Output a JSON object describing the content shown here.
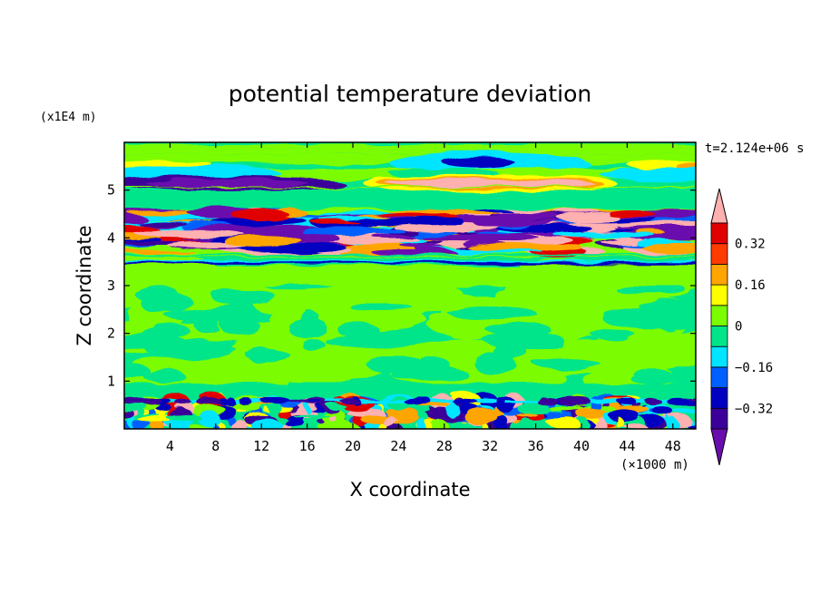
{
  "chart_data": {
    "type": "heatmap",
    "title": "potential temperature deviation",
    "time_label": "t=2.124e+06 s",
    "xlabel": "X coordinate",
    "ylabel": "Z coordinate",
    "x_unit": "(×1000 m)",
    "y_unit": "(x1E4 m)",
    "xlim": [
      0,
      50
    ],
    "ylim": [
      0,
      6
    ],
    "x_ticks": [
      4,
      8,
      12,
      16,
      20,
      24,
      28,
      32,
      36,
      40,
      44,
      48
    ],
    "y_ticks": [
      1,
      2,
      3,
      4,
      5
    ],
    "x_tick_labels": [
      "4",
      "8",
      "12",
      "16",
      "20",
      "24",
      "28",
      "32",
      "36",
      "40",
      "44",
      "48"
    ],
    "y_tick_labels": [
      "1",
      "2",
      "3",
      "4",
      "5"
    ],
    "colorbar": {
      "levels": [
        -0.4,
        -0.32,
        -0.24,
        -0.16,
        -0.08,
        0,
        0.08,
        0.16,
        0.24,
        0.32,
        0.4
      ],
      "tick_values": [
        0.32,
        0.16,
        0,
        -0.16,
        -0.32
      ],
      "tick_labels": [
        "0.32",
        "0.16",
        "0",
        "−0.16",
        "−0.32"
      ],
      "colors": [
        "#6a0daf",
        "#3b0099",
        "#0000c0",
        "#0060ff",
        "#00e5ff",
        "#00e58a",
        "#7cfc00",
        "#ffff00",
        "#ffa500",
        "#ff3c00",
        "#e00000",
        "#ffb0b0"
      ],
      "extend": "both"
    },
    "bands": [
      {
        "z": [
          5.55,
          5.75
        ],
        "value": -0.05
      },
      {
        "z": [
          5.45,
          5.55
        ],
        "value": 0.2
      },
      {
        "z": [
          5.25,
          5.45
        ],
        "value": -0.18
      },
      {
        "z": [
          5.05,
          5.22
        ],
        "value": 0.45
      },
      {
        "z": [
          4.0,
          4.55
        ],
        "value": "mixed"
      },
      {
        "z": [
          3.45,
          3.55
        ],
        "value": -0.3
      },
      {
        "z": [
          0.0,
          0.65
        ],
        "value": "mixed"
      }
    ]
  }
}
